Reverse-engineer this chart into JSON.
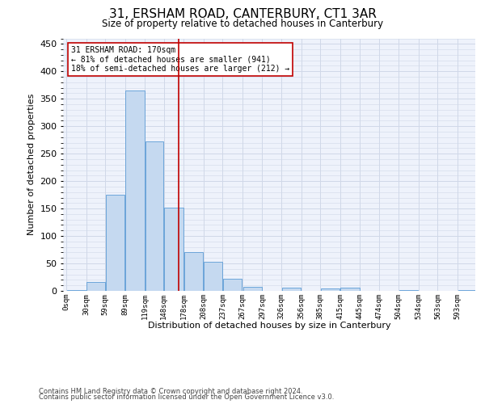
{
  "title": "31, ERSHAM ROAD, CANTERBURY, CT1 3AR",
  "subtitle": "Size of property relative to detached houses in Canterbury",
  "xlabel": "Distribution of detached houses by size in Canterbury",
  "ylabel": "Number of detached properties",
  "footnote1": "Contains HM Land Registry data © Crown copyright and database right 2024.",
  "footnote2": "Contains public sector information licensed under the Open Government Licence v3.0.",
  "annotation_title": "31 ERSHAM ROAD: 170sqm",
  "annotation_line1": "← 81% of detached houses are smaller (941)",
  "annotation_line2": "18% of semi-detached houses are larger (212) →",
  "property_line_x": 170,
  "bar_bins": [
    0,
    30,
    59,
    89,
    119,
    148,
    178,
    208,
    237,
    267,
    297,
    326,
    356,
    385,
    415,
    445,
    474,
    504,
    534,
    563,
    593
  ],
  "bar_heights": [
    2,
    16,
    175,
    365,
    272,
    151,
    70,
    53,
    22,
    8,
    0,
    6,
    0,
    5,
    6,
    0,
    0,
    1,
    0,
    0,
    2
  ],
  "bar_color": "#c5d9f0",
  "bar_edge_color": "#5b9bd5",
  "grid_color": "#d0d8e8",
  "background_color": "#eef2fb",
  "vline_color": "#c00000",
  "annotation_box_color": "#ffffff",
  "annotation_box_edge": "#c00000",
  "ylim": [
    0,
    460
  ],
  "xlim": [
    -5,
    620
  ],
  "bin_labels": [
    "0sqm",
    "30sqm",
    "59sqm",
    "89sqm",
    "119sqm",
    "148sqm",
    "178sqm",
    "208sqm",
    "237sqm",
    "267sqm",
    "297sqm",
    "326sqm",
    "356sqm",
    "385sqm",
    "415sqm",
    "445sqm",
    "474sqm",
    "504sqm",
    "534sqm",
    "563sqm",
    "593sqm"
  ],
  "title_fontsize": 11,
  "subtitle_fontsize": 8.5,
  "ylabel_fontsize": 8,
  "xlabel_fontsize": 8,
  "ytick_fontsize": 8,
  "xtick_fontsize": 6.5,
  "annotation_fontsize": 7,
  "footnote_fontsize": 6
}
